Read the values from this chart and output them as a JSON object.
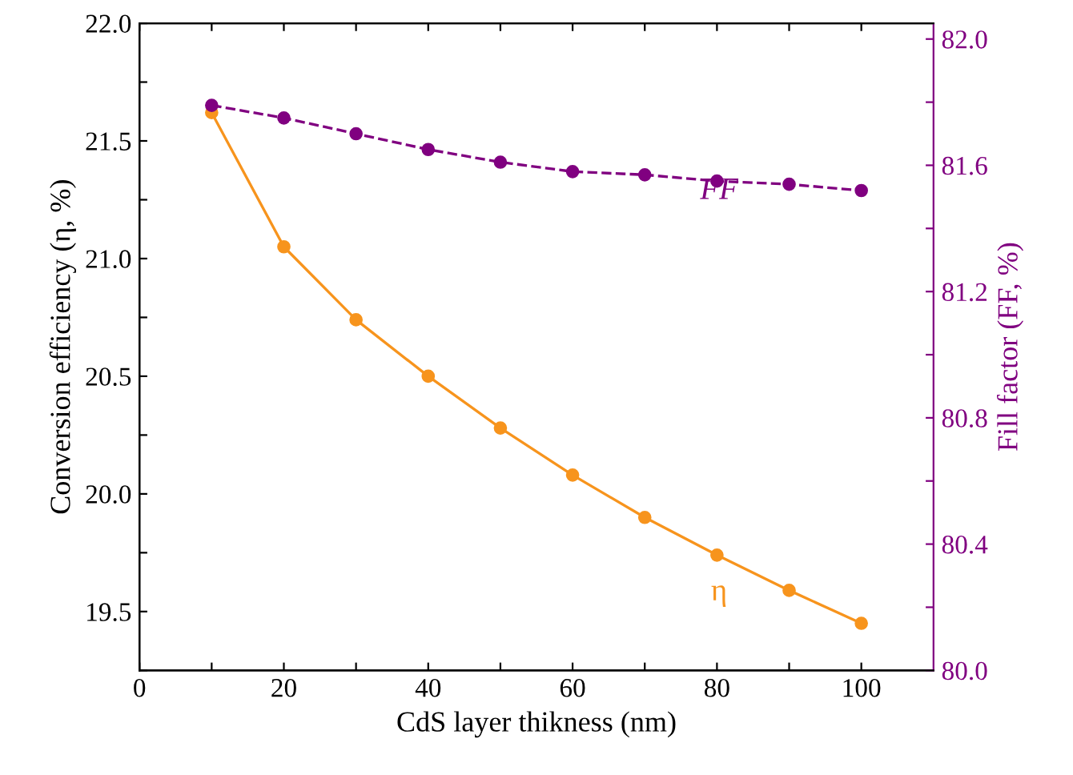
{
  "chart_data": {
    "type": "line",
    "xlabel": "CdS layer thikness (nm)",
    "ylabel": "Conversion efficiency (η, %)",
    "y2label": "Fill factor (FF, %)",
    "x": [
      10,
      20,
      30,
      40,
      50,
      60,
      70,
      80,
      90,
      100
    ],
    "xlim": [
      0,
      110
    ],
    "xticks": [
      0,
      {
        "value": 10,
        "label": null
      },
      20,
      {
        "value": 30,
        "label": null
      },
      40,
      {
        "value": 50,
        "label": null
      },
      60,
      {
        "value": 70,
        "label": null
      },
      80,
      {
        "value": 90,
        "label": null
      },
      100
    ],
    "ylim": [
      19.25,
      22.0
    ],
    "yticks": [
      {
        "value": 19.25,
        "label": null
      },
      19.5,
      {
        "value": 19.75,
        "label": null
      },
      {
        "value": 20.0,
        "label": "20.0"
      },
      {
        "value": 20.25,
        "label": null
      },
      20.5,
      {
        "value": 20.75,
        "label": null
      },
      {
        "value": 21.0,
        "label": "21.0"
      },
      {
        "value": 21.25,
        "label": null
      },
      21.5,
      {
        "value": 21.75,
        "label": null
      },
      {
        "value": 22.0,
        "label": "22.0"
      }
    ],
    "y2lim": [
      80.0,
      82.05
    ],
    "y2ticks": [
      {
        "value": 80.0,
        "label": "80.0"
      },
      {
        "value": 80.2,
        "label": null
      },
      80.4,
      {
        "value": 80.6,
        "label": null
      },
      80.8,
      {
        "value": 81.0,
        "label": null
      },
      81.2,
      {
        "value": 81.4,
        "label": null
      },
      81.6,
      {
        "value": 81.8,
        "label": null
      },
      {
        "value": 82.0,
        "label": "82.0"
      }
    ],
    "marker": "circle",
    "grid": false,
    "legend": false,
    "series": [
      {
        "color": "#f7941d",
        "line_style": "solid",
        "values": [
          21.62,
          21.05,
          20.74,
          20.5,
          20.28,
          20.08,
          19.9,
          19.74,
          19.59,
          19.45
        ]
      },
      {
        "color": "#800080",
        "line_style": "dashed",
        "axis": "y2",
        "values": [
          81.79,
          81.75,
          81.7,
          81.65,
          81.61,
          81.58,
          81.57,
          81.55,
          81.54,
          81.52
        ]
      }
    ],
    "annotations": [
      "η",
      "FF"
    ]
  }
}
